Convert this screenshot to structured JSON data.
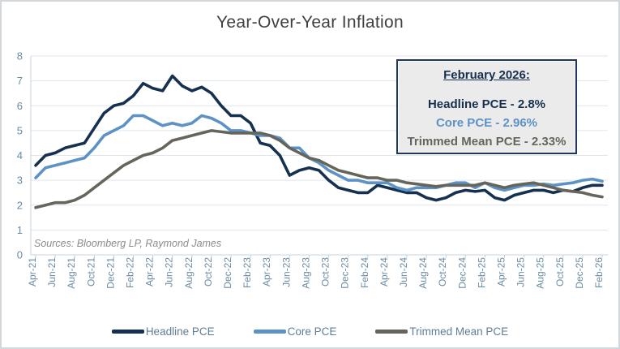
{
  "window": {
    "title": "Year-Over-Year Inflation chart"
  },
  "chart_data": {
    "type": "line",
    "title": "Year-Over-Year Inflation",
    "xlabel": "",
    "ylabel": "",
    "ylim": [
      0,
      8
    ],
    "yticks": [
      0,
      1,
      2,
      3,
      4,
      5,
      6,
      7,
      8
    ],
    "grid": true,
    "legend_position": "bottom",
    "x_tick_step": 2,
    "categories": [
      "Apr-21",
      "May-21",
      "Jun-21",
      "Jul-21",
      "Aug-21",
      "Sep-21",
      "Oct-21",
      "Nov-21",
      "Dec-21",
      "Jan-22",
      "Feb-22",
      "Mar-22",
      "Apr-22",
      "May-22",
      "Jun-22",
      "Jul-22",
      "Aug-22",
      "Sep-22",
      "Oct-22",
      "Nov-22",
      "Dec-22",
      "Jan-23",
      "Feb-23",
      "Mar-23",
      "Apr-23",
      "May-23",
      "Jun-23",
      "Jul-23",
      "Aug-23",
      "Sep-23",
      "Oct-23",
      "Nov-23",
      "Dec-23",
      "Jan-24",
      "Feb-24",
      "Mar-24",
      "Apr-24",
      "May-24",
      "Jun-24",
      "Jul-24",
      "Aug-24",
      "Sep-24",
      "Oct-24",
      "Nov-24",
      "Dec-24",
      "Jan-25",
      "Feb-25",
      "Mar-25",
      "Apr-25",
      "May-25",
      "Jun-25",
      "Jul-25",
      "Aug-25",
      "Sep-25",
      "Oct-25",
      "Nov-25",
      "Dec-25",
      "Jan-26",
      "Feb-26"
    ],
    "series": [
      {
        "name": "Headline PCE",
        "color": "#16304F",
        "values": [
          3.6,
          4.0,
          4.1,
          4.3,
          4.4,
          4.5,
          5.1,
          5.7,
          6.0,
          6.1,
          6.4,
          6.9,
          6.7,
          6.6,
          7.2,
          6.8,
          6.6,
          6.75,
          6.5,
          6.0,
          5.6,
          5.6,
          5.3,
          4.5,
          4.4,
          4.0,
          3.2,
          3.4,
          3.5,
          3.4,
          3.0,
          2.7,
          2.6,
          2.5,
          2.5,
          2.8,
          2.7,
          2.6,
          2.5,
          2.5,
          2.3,
          2.2,
          2.3,
          2.5,
          2.6,
          2.55,
          2.6,
          2.3,
          2.2,
          2.4,
          2.5,
          2.6,
          2.6,
          2.5,
          2.6,
          2.55,
          2.7,
          2.8,
          2.8
        ]
      },
      {
        "name": "Core PCE",
        "color": "#5D92C6",
        "values": [
          3.1,
          3.5,
          3.6,
          3.7,
          3.8,
          3.9,
          4.3,
          4.8,
          5.0,
          5.2,
          5.6,
          5.6,
          5.4,
          5.2,
          5.3,
          5.2,
          5.3,
          5.6,
          5.5,
          5.3,
          5.0,
          5.0,
          4.9,
          4.8,
          4.8,
          4.7,
          4.3,
          4.3,
          3.9,
          3.7,
          3.4,
          3.2,
          3.0,
          3.0,
          2.9,
          2.9,
          2.9,
          2.7,
          2.6,
          2.7,
          2.7,
          2.7,
          2.8,
          2.9,
          2.9,
          2.7,
          2.9,
          2.7,
          2.6,
          2.7,
          2.8,
          2.8,
          2.85,
          2.8,
          2.85,
          2.9,
          3.0,
          3.05,
          2.96
        ]
      },
      {
        "name": "Trimmed Mean PCE",
        "color": "#66655C",
        "values": [
          1.9,
          2.0,
          2.1,
          2.1,
          2.2,
          2.4,
          2.7,
          3.0,
          3.3,
          3.6,
          3.8,
          4.0,
          4.1,
          4.3,
          4.6,
          4.7,
          4.8,
          4.9,
          5.0,
          4.95,
          4.9,
          4.9,
          4.9,
          4.9,
          4.8,
          4.6,
          4.3,
          4.1,
          3.9,
          3.8,
          3.6,
          3.4,
          3.3,
          3.2,
          3.1,
          3.1,
          3.0,
          3.0,
          2.9,
          2.85,
          2.8,
          2.75,
          2.8,
          2.8,
          2.8,
          2.8,
          2.9,
          2.8,
          2.7,
          2.8,
          2.85,
          2.9,
          2.8,
          2.7,
          2.6,
          2.55,
          2.5,
          2.4,
          2.33
        ]
      }
    ]
  },
  "annotation_box": {
    "header": "February 2026:",
    "lines": [
      {
        "text": "Headline PCE - 2.8%",
        "color": "#16304F"
      },
      {
        "text": "Core PCE - 2.96%",
        "color": "#5D92C6"
      },
      {
        "text": "Trimmed Mean PCE - 2.33%",
        "color": "#66655C"
      }
    ]
  },
  "source_note": "Sources: Bloomberg LP, Raymond James",
  "colors": {
    "title_text": "#404040",
    "axis_text": "#6b8ca3",
    "gridline": "#dee6ec",
    "axis_line": "#c7d3dc",
    "legend_text": "#5e7e96",
    "annotation_bg": "#ebebeb",
    "annotation_border": "#20365c",
    "canvas_border": "#d2d7dc"
  }
}
